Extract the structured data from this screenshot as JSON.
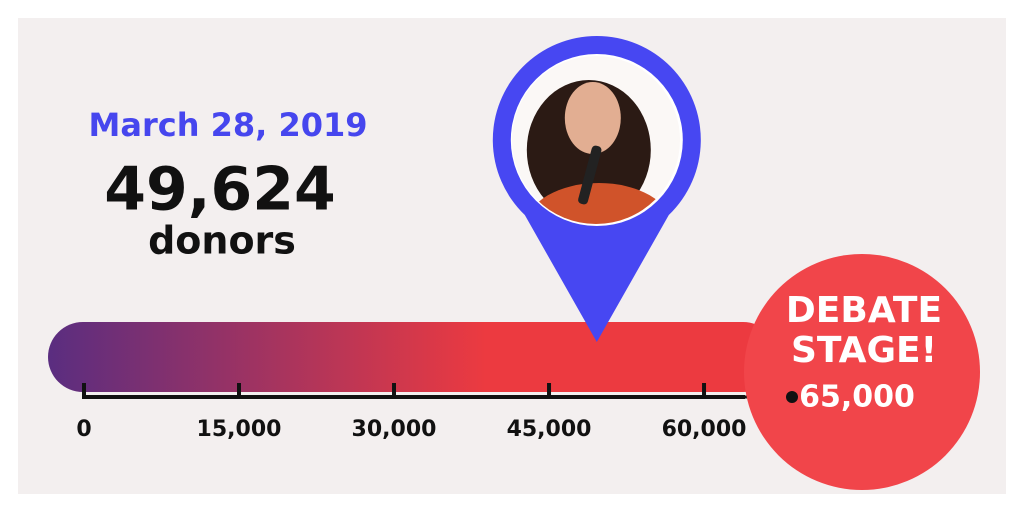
{
  "chart_data": {
    "type": "progress",
    "date": "March 28, 2019",
    "current": {
      "value": 49624,
      "label": "49,624"
    },
    "unit": "donors",
    "goal": {
      "value": 65000,
      "label": "65,000",
      "title_lines": [
        "DEBATE",
        "STAGE!"
      ]
    },
    "xlim": [
      0,
      65000
    ],
    "xticks": [
      0,
      {
        "value": 15000,
        "label": "15,000"
      },
      {
        "value": 30000,
        "label": "30,000"
      },
      {
        "value": 45000,
        "label": "45,000"
      },
      {
        "value": 60000,
        "label": "60,000"
      }
    ],
    "colors": {
      "date": "#4646ee",
      "pin": "#4747f2",
      "bar_start": "#5a2d80",
      "bar_end": "#ec3a40",
      "goal": "#f1454a"
    }
  }
}
